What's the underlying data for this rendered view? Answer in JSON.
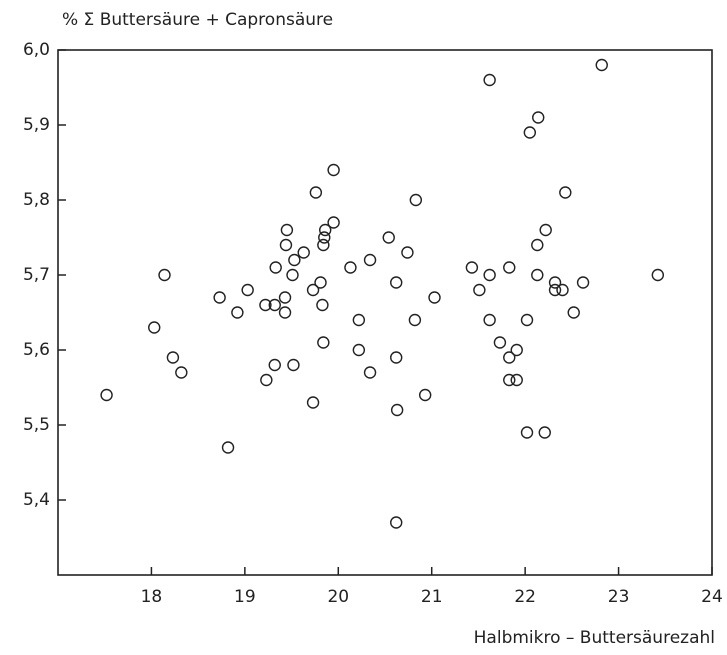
{
  "chart_data": {
    "type": "scatter",
    "title": "% Σ Buttersäure + Capronsäure",
    "x_label": "Halbmikro – Buttersäurezahl",
    "color": "#222222",
    "xlim": [
      17,
      24
    ],
    "xticks": [
      18,
      19,
      20,
      21,
      22,
      23,
      24
    ],
    "ylim": [
      5.3,
      6.0
    ],
    "yticks": [
      {
        "value": 5.4,
        "label": "5,4"
      },
      {
        "value": 5.5,
        "label": "5,5"
      },
      {
        "value": 5.6,
        "label": "5,6"
      },
      {
        "value": 5.7,
        "label": "5,7"
      },
      {
        "value": 5.8,
        "label": "5,8"
      },
      {
        "value": 5.9,
        "label": "5,9"
      },
      {
        "value": 6.0,
        "label": "6,0"
      }
    ],
    "x": [
      17.52,
      18.14,
      18.03,
      18.23,
      18.32,
      18.73,
      18.92,
      19.03,
      18.82,
      19.22,
      19.32,
      19.33,
      19.23,
      19.32,
      19.43,
      19.43,
      19.44,
      19.45,
      19.51,
      19.53,
      19.52,
      19.63,
      19.73,
      19.81,
      19.76,
      19.73,
      19.84,
      19.85,
      19.86,
      19.83,
      19.84,
      19.95,
      19.95,
      20.13,
      20.22,
      20.22,
      20.34,
      20.34,
      20.54,
      20.62,
      20.62,
      20.63,
      20.62,
      20.74,
      20.83,
      20.82,
      20.93,
      21.03,
      21.43,
      21.51,
      21.62,
      21.62,
      21.62,
      21.73,
      21.83,
      21.83,
      21.83,
      21.91,
      21.91,
      22.02,
      22.02,
      22.05,
      22.14,
      22.13,
      22.13,
      22.22,
      22.21,
      22.32,
      22.32,
      22.4,
      22.43,
      22.52,
      22.62,
      22.82,
      23.42
    ],
    "values": [
      5.54,
      5.7,
      5.63,
      5.59,
      5.57,
      5.67,
      5.65,
      5.68,
      5.47,
      5.66,
      5.66,
      5.71,
      5.56,
      5.58,
      5.65,
      5.67,
      5.74,
      5.76,
      5.7,
      5.72,
      5.58,
      5.73,
      5.68,
      5.69,
      5.81,
      5.53,
      5.74,
      5.75,
      5.76,
      5.66,
      5.61,
      5.77,
      5.84,
      5.71,
      5.64,
      5.6,
      5.72,
      5.57,
      5.75,
      5.69,
      5.59,
      5.52,
      5.37,
      5.73,
      5.8,
      5.64,
      5.54,
      5.67,
      5.71,
      5.68,
      5.7,
      5.96,
      5.64,
      5.61,
      5.71,
      5.59,
      5.56,
      5.56,
      5.6,
      5.64,
      5.49,
      5.89,
      5.91,
      5.74,
      5.7,
      5.76,
      5.49,
      5.69,
      5.68,
      5.68,
      5.81,
      5.65,
      5.69,
      5.98,
      5.7
    ]
  }
}
